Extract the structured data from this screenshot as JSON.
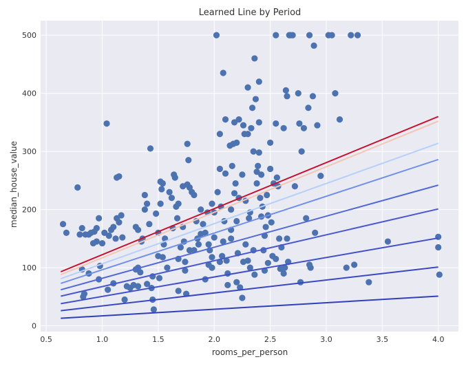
{
  "chart_data": {
    "type": "scatter",
    "title": "Learned Line by Period",
    "xlabel": "rooms_per_person",
    "ylabel": "median_house_value",
    "xlim": [
      0.45,
      4.18
    ],
    "ylim": [
      -10,
      525
    ],
    "x_ticks": [
      "0.5",
      "1.0",
      "1.5",
      "2.0",
      "2.5",
      "3.0",
      "3.5",
      "4.0"
    ],
    "y_ticks": [
      "0",
      "100",
      "200",
      "300",
      "400",
      "500"
    ],
    "grid": true,
    "background": "#eaeaf2",
    "marker_color": "#4c72b0",
    "points": [
      [
        0.65,
        175
      ],
      [
        0.68,
        160
      ],
      [
        0.78,
        238
      ],
      [
        0.8,
        157
      ],
      [
        0.82,
        168
      ],
      [
        0.85,
        157
      ],
      [
        0.88,
        157
      ],
      [
        0.9,
        160
      ],
      [
        0.92,
        142
      ],
      [
        0.93,
        162
      ],
      [
        0.95,
        168
      ],
      [
        0.95,
        145
      ],
      [
        0.97,
        185
      ],
      [
        0.98,
        103
      ],
      [
        1.0,
        142
      ],
      [
        1.02,
        160
      ],
      [
        1.04,
        348
      ],
      [
        1.06,
        155
      ],
      [
        1.08,
        165
      ],
      [
        1.1,
        170
      ],
      [
        0.82,
        97
      ],
      [
        0.88,
        90
      ],
      [
        0.83,
        50
      ],
      [
        0.84,
        55
      ],
      [
        0.97,
        80
      ],
      [
        1.05,
        62
      ],
      [
        1.1,
        73
      ],
      [
        1.12,
        150
      ],
      [
        1.13,
        185
      ],
      [
        1.15,
        178
      ],
      [
        1.13,
        255
      ],
      [
        1.15,
        257
      ],
      [
        1.17,
        190
      ],
      [
        1.18,
        152
      ],
      [
        1.2,
        45
      ],
      [
        1.22,
        68
      ],
      [
        1.25,
        65
      ],
      [
        1.28,
        70
      ],
      [
        1.3,
        170
      ],
      [
        1.32,
        165
      ],
      [
        1.3,
        97
      ],
      [
        1.32,
        68
      ],
      [
        1.34,
        92
      ],
      [
        1.35,
        145
      ],
      [
        1.36,
        150
      ],
      [
        1.38,
        200
      ],
      [
        1.38,
        225
      ],
      [
        1.4,
        210
      ],
      [
        1.4,
        72
      ],
      [
        1.42,
        175
      ],
      [
        1.43,
        305
      ],
      [
        1.44,
        65
      ],
      [
        1.45,
        45
      ],
      [
        1.46,
        28
      ],
      [
        1.48,
        193
      ],
      [
        1.5,
        160
      ],
      [
        1.5,
        120
      ],
      [
        1.51,
        82
      ],
      [
        1.52,
        210
      ],
      [
        1.53,
        235
      ],
      [
        1.54,
        245
      ],
      [
        1.55,
        140
      ],
      [
        1.56,
        150
      ],
      [
        1.58,
        100
      ],
      [
        1.6,
        230
      ],
      [
        1.62,
        220
      ],
      [
        1.63,
        168
      ],
      [
        1.64,
        260
      ],
      [
        1.65,
        255
      ],
      [
        1.66,
        205
      ],
      [
        1.67,
        185
      ],
      [
        1.68,
        115
      ],
      [
        1.68,
        60
      ],
      [
        1.7,
        135
      ],
      [
        1.72,
        240
      ],
      [
        1.72,
        170
      ],
      [
        1.73,
        145
      ],
      [
        1.74,
        110
      ],
      [
        1.75,
        55
      ],
      [
        1.76,
        313
      ],
      [
        1.77,
        285
      ],
      [
        1.78,
        238
      ],
      [
        1.78,
        130
      ],
      [
        1.8,
        230
      ],
      [
        1.82,
        225
      ],
      [
        1.84,
        180
      ],
      [
        1.85,
        150
      ],
      [
        1.86,
        140
      ],
      [
        1.88,
        200
      ],
      [
        1.9,
        175
      ],
      [
        1.92,
        160
      ],
      [
        1.92,
        80
      ],
      [
        1.94,
        195
      ],
      [
        1.95,
        140
      ],
      [
        1.96,
        130
      ],
      [
        1.98,
        210
      ],
      [
        1.98,
        100
      ],
      [
        2.0,
        195
      ],
      [
        2.0,
        152
      ],
      [
        2.02,
        500
      ],
      [
        2.03,
        230
      ],
      [
        2.05,
        270
      ],
      [
        2.05,
        330
      ],
      [
        2.06,
        205
      ],
      [
        2.07,
        120
      ],
      [
        2.08,
        435
      ],
      [
        2.08,
        145
      ],
      [
        2.09,
        180
      ],
      [
        2.1,
        355
      ],
      [
        2.1,
        262
      ],
      [
        2.11,
        112
      ],
      [
        2.12,
        90
      ],
      [
        2.12,
        70
      ],
      [
        2.14,
        310
      ],
      [
        2.15,
        200
      ],
      [
        2.15,
        165
      ],
      [
        2.16,
        275
      ],
      [
        2.17,
        313
      ],
      [
        2.18,
        350
      ],
      [
        2.18,
        228
      ],
      [
        2.19,
        245
      ],
      [
        2.2,
        315
      ],
      [
        2.2,
        180
      ],
      [
        2.21,
        125
      ],
      [
        2.22,
        355
      ],
      [
        2.22,
        220
      ],
      [
        2.23,
        66
      ],
      [
        2.25,
        48
      ],
      [
        2.25,
        260
      ],
      [
        2.26,
        345
      ],
      [
        2.26,
        110
      ],
      [
        2.27,
        330
      ],
      [
        2.28,
        215
      ],
      [
        2.28,
        140
      ],
      [
        2.3,
        410
      ],
      [
        2.3,
        330
      ],
      [
        2.31,
        185
      ],
      [
        2.32,
        195
      ],
      [
        2.32,
        100
      ],
      [
        2.33,
        340
      ],
      [
        2.34,
        375
      ],
      [
        2.35,
        300
      ],
      [
        2.35,
        130
      ],
      [
        2.36,
        460
      ],
      [
        2.36,
        88
      ],
      [
        2.37,
        390
      ],
      [
        2.38,
        245
      ],
      [
        2.38,
        265
      ],
      [
        2.39,
        275
      ],
      [
        2.4,
        350
      ],
      [
        2.4,
        420
      ],
      [
        2.4,
        298
      ],
      [
        2.41,
        220
      ],
      [
        2.42,
        260
      ],
      [
        2.42,
        188
      ],
      [
        2.43,
        205
      ],
      [
        2.44,
        130
      ],
      [
        2.45,
        155
      ],
      [
        2.46,
        170
      ],
      [
        2.47,
        225
      ],
      [
        2.48,
        190
      ],
      [
        2.48,
        108
      ],
      [
        2.5,
        315
      ],
      [
        2.5,
        270
      ],
      [
        2.51,
        178
      ],
      [
        2.52,
        120
      ],
      [
        2.53,
        245
      ],
      [
        2.55,
        500
      ],
      [
        2.55,
        348
      ],
      [
        2.56,
        255
      ],
      [
        2.57,
        240
      ],
      [
        2.58,
        150
      ],
      [
        2.59,
        98
      ],
      [
        2.6,
        135
      ],
      [
        2.62,
        340
      ],
      [
        2.63,
        100
      ],
      [
        2.64,
        405
      ],
      [
        2.65,
        395
      ],
      [
        2.65,
        150
      ],
      [
        2.66,
        110
      ],
      [
        2.67,
        500
      ],
      [
        2.68,
        500
      ],
      [
        2.7,
        500
      ],
      [
        2.72,
        240
      ],
      [
        2.75,
        400
      ],
      [
        2.76,
        348
      ],
      [
        2.77,
        75
      ],
      [
        2.78,
        300
      ],
      [
        2.8,
        340
      ],
      [
        2.82,
        185
      ],
      [
        2.84,
        375
      ],
      [
        2.85,
        500
      ],
      [
        2.85,
        105
      ],
      [
        2.86,
        100
      ],
      [
        2.88,
        395
      ],
      [
        2.89,
        482
      ],
      [
        2.9,
        160
      ],
      [
        2.92,
        345
      ],
      [
        2.95,
        258
      ],
      [
        3.02,
        500
      ],
      [
        3.05,
        500
      ],
      [
        3.08,
        400
      ],
      [
        3.12,
        355
      ],
      [
        3.18,
        100
      ],
      [
        3.22,
        500
      ],
      [
        3.25,
        105
      ],
      [
        3.28,
        500
      ],
      [
        3.38,
        75
      ],
      [
        3.55,
        145
      ],
      [
        4.0,
        153
      ],
      [
        4.0,
        135
      ],
      [
        4.01,
        88
      ],
      [
        1.52,
        248
      ],
      [
        1.76,
        243
      ],
      [
        1.88,
        158
      ],
      [
        1.68,
        210
      ],
      [
        2.3,
        112
      ],
      [
        2.05,
        110
      ],
      [
        1.95,
        105
      ],
      [
        1.82,
        130
      ],
      [
        2.15,
        150
      ],
      [
        2.55,
        115
      ],
      [
        2.45,
        95
      ],
      [
        1.74,
        95
      ],
      [
        1.54,
        118
      ],
      [
        1.45,
        85
      ],
      [
        1.32,
        100
      ],
      [
        2.62,
        90
      ],
      [
        2.2,
        75
      ],
      [
        1.98,
        118
      ]
    ],
    "series": [
      {
        "color": "#c8102e",
        "x": [
          0.63,
          4.0
        ],
        "y": [
          93,
          360
        ]
      },
      {
        "color": "#f5c5b5",
        "x": [
          0.63,
          4.0
        ],
        "y": [
          88,
          352
        ]
      },
      {
        "color": "#b7cffb",
        "x": [
          0.63,
          4.0
        ],
        "y": [
          81,
          314
        ]
      },
      {
        "color": "#7090e8",
        "x": [
          0.63,
          4.0
        ],
        "y": [
          73,
          286
        ]
      },
      {
        "color": "#5068d8",
        "x": [
          0.63,
          4.0
        ],
        "y": [
          62,
          242
        ]
      },
      {
        "color": "#4858d0",
        "x": [
          0.63,
          4.0
        ],
        "y": [
          51,
          201
        ]
      },
      {
        "color": "#4050c8",
        "x": [
          0.63,
          4.0
        ],
        "y": [
          38,
          151
        ]
      },
      {
        "color": "#3848c0",
        "x": [
          0.63,
          4.0
        ],
        "y": [
          26,
          101
        ]
      },
      {
        "color": "#3040b8",
        "x": [
          0.63,
          4.0
        ],
        "y": [
          13,
          51
        ]
      }
    ]
  }
}
